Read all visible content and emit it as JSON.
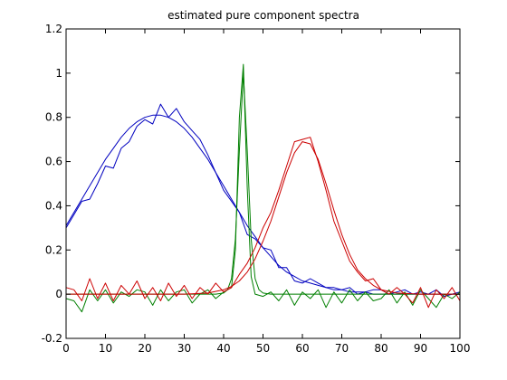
{
  "chart_data": {
    "type": "line",
    "title": "estimated pure component spectra",
    "xlabel": "",
    "ylabel": "",
    "xlim": [
      0,
      100
    ],
    "ylim": [
      -0.2,
      1.2
    ],
    "xticks": [
      0,
      10,
      20,
      30,
      40,
      50,
      60,
      70,
      80,
      90,
      100
    ],
    "yticks": [
      -0.2,
      0,
      0.2,
      0.4,
      0.6,
      0.8,
      1,
      1.2
    ],
    "ytick_labels": [
      "-0.2",
      "0",
      "0.2",
      "0.4",
      "0.6",
      "0.8",
      "1",
      "1.2"
    ],
    "grid": false,
    "legend": "none",
    "series": [
      {
        "color": "#0000bf",
        "style": "noisy",
        "x": [
          0,
          2,
          4,
          6,
          8,
          10,
          12,
          14,
          16,
          18,
          20,
          22,
          24,
          26,
          28,
          30,
          32,
          34,
          36,
          38,
          40,
          42,
          44,
          46,
          48,
          50,
          52,
          54,
          56,
          58,
          60,
          62,
          64,
          66,
          68,
          70,
          72,
          74,
          76,
          78,
          80,
          82,
          84,
          86,
          88,
          90,
          92,
          94,
          96,
          98,
          100
        ],
        "y": [
          0.3,
          0.36,
          0.42,
          0.43,
          0.5,
          0.58,
          0.57,
          0.66,
          0.69,
          0.76,
          0.79,
          0.77,
          0.86,
          0.8,
          0.84,
          0.78,
          0.74,
          0.7,
          0.63,
          0.55,
          0.47,
          0.42,
          0.37,
          0.27,
          0.25,
          0.21,
          0.2,
          0.12,
          0.12,
          0.06,
          0.05,
          0.07,
          0.05,
          0.03,
          0.03,
          0.02,
          0.03,
          0.0,
          0.01,
          0.02,
          0.02,
          0.0,
          0.01,
          0.02,
          0.0,
          0.01,
          0.0,
          0.02,
          -0.01,
          0.0,
          0.01
        ]
      },
      {
        "color": "#0000bf",
        "style": "smooth",
        "x": [
          0,
          2,
          4,
          6,
          8,
          10,
          12,
          14,
          16,
          18,
          20,
          22,
          24,
          26,
          28,
          30,
          32,
          34,
          36,
          38,
          40,
          42,
          44,
          46,
          48,
          50,
          52,
          54,
          56,
          58,
          60,
          62,
          64,
          66,
          68,
          70,
          72,
          74,
          76,
          78,
          80,
          82,
          84,
          86,
          88,
          90,
          92,
          94,
          96,
          98,
          100
        ],
        "y": [
          0.31,
          0.37,
          0.43,
          0.49,
          0.55,
          0.61,
          0.66,
          0.71,
          0.75,
          0.78,
          0.8,
          0.81,
          0.81,
          0.8,
          0.78,
          0.75,
          0.71,
          0.66,
          0.61,
          0.55,
          0.49,
          0.43,
          0.37,
          0.31,
          0.26,
          0.21,
          0.17,
          0.13,
          0.1,
          0.08,
          0.06,
          0.05,
          0.04,
          0.03,
          0.02,
          0.02,
          0.01,
          0.01,
          0.01,
          0.0,
          0.0,
          0.0,
          0.0,
          0.0,
          0.0,
          0.0,
          0.0,
          0.0,
          0.0,
          0.0,
          0.0
        ]
      },
      {
        "color": "#007f00",
        "style": "noisy",
        "x": [
          0,
          2,
          4,
          6,
          8,
          10,
          12,
          14,
          16,
          18,
          20,
          22,
          24,
          26,
          28,
          30,
          32,
          34,
          36,
          38,
          40,
          42,
          43,
          44,
          45,
          46,
          47,
          48,
          50,
          52,
          54,
          56,
          58,
          60,
          62,
          64,
          66,
          68,
          70,
          72,
          74,
          76,
          78,
          80,
          82,
          84,
          86,
          88,
          90,
          92,
          94,
          96,
          98,
          100
        ],
        "y": [
          -0.02,
          -0.03,
          -0.08,
          0.02,
          -0.03,
          0.02,
          -0.04,
          0.01,
          -0.01,
          0.02,
          0.01,
          -0.05,
          0.02,
          -0.03,
          0.01,
          0.02,
          -0.04,
          0.0,
          0.02,
          -0.02,
          0.01,
          0.03,
          0.2,
          0.8,
          1.04,
          0.48,
          0.08,
          0.0,
          -0.01,
          0.01,
          -0.03,
          0.02,
          -0.05,
          0.01,
          -0.02,
          0.02,
          -0.06,
          0.01,
          -0.04,
          0.02,
          -0.03,
          0.01,
          -0.03,
          -0.02,
          0.02,
          -0.04,
          0.01,
          -0.05,
          0.02,
          -0.02,
          -0.06,
          0.0,
          -0.02,
          0.01
        ]
      },
      {
        "color": "#007f00",
        "style": "smooth",
        "x": [
          0,
          10,
          20,
          30,
          38,
          40,
          41,
          42,
          43,
          44,
          45,
          46,
          47,
          48,
          49,
          50,
          52,
          60,
          70,
          80,
          90,
          100
        ],
        "y": [
          0,
          0,
          0,
          0,
          0,
          0.005,
          0.02,
          0.07,
          0.25,
          0.65,
          1.0,
          0.65,
          0.25,
          0.07,
          0.02,
          0.005,
          0,
          0,
          0,
          0,
          0,
          0
        ]
      },
      {
        "color": "#cc0000",
        "style": "noisy",
        "x": [
          0,
          2,
          4,
          6,
          8,
          10,
          12,
          14,
          16,
          18,
          20,
          22,
          24,
          26,
          28,
          30,
          32,
          34,
          36,
          38,
          40,
          42,
          44,
          46,
          48,
          50,
          52,
          54,
          56,
          58,
          60,
          62,
          64,
          66,
          68,
          70,
          72,
          74,
          76,
          78,
          80,
          82,
          84,
          86,
          88,
          90,
          92,
          94,
          96,
          98,
          100
        ],
        "y": [
          0.03,
          0.02,
          -0.03,
          0.07,
          -0.02,
          0.05,
          -0.03,
          0.04,
          0.0,
          0.06,
          -0.02,
          0.03,
          -0.03,
          0.05,
          -0.01,
          0.04,
          -0.02,
          0.03,
          0.0,
          0.05,
          0.01,
          0.03,
          0.09,
          0.14,
          0.21,
          0.3,
          0.37,
          0.47,
          0.58,
          0.69,
          0.7,
          0.71,
          0.6,
          0.47,
          0.33,
          0.24,
          0.15,
          0.1,
          0.06,
          0.07,
          0.02,
          0.0,
          0.03,
          0.0,
          -0.04,
          0.03,
          -0.06,
          0.02,
          -0.02,
          0.03,
          -0.03
        ]
      },
      {
        "color": "#cc0000",
        "style": "smooth",
        "x": [
          0,
          10,
          20,
          30,
          36,
          40,
          42,
          44,
          46,
          48,
          50,
          52,
          54,
          56,
          58,
          60,
          62,
          64,
          66,
          68,
          70,
          72,
          74,
          76,
          78,
          80,
          84,
          90,
          100
        ],
        "y": [
          0.0,
          0.0,
          0.0,
          0.0,
          0.005,
          0.02,
          0.035,
          0.06,
          0.1,
          0.16,
          0.24,
          0.33,
          0.44,
          0.55,
          0.64,
          0.69,
          0.68,
          0.61,
          0.5,
          0.38,
          0.27,
          0.18,
          0.11,
          0.07,
          0.04,
          0.02,
          0.005,
          0.0,
          0.0
        ]
      }
    ]
  }
}
